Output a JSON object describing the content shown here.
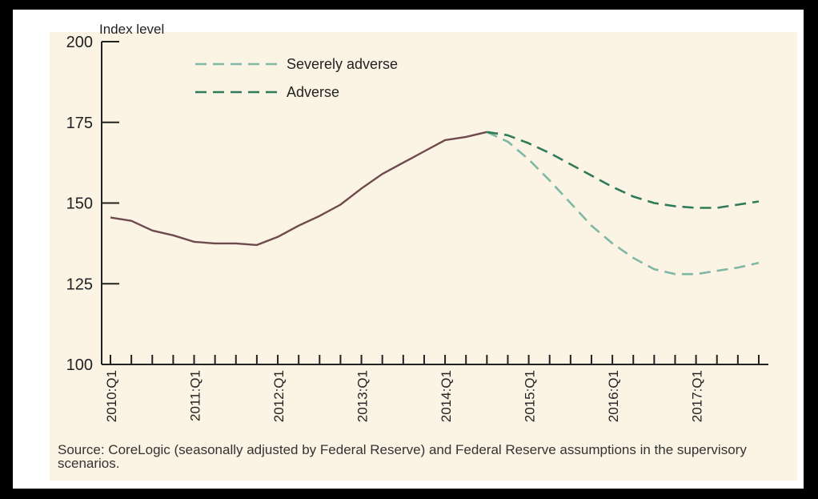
{
  "chart_data": {
    "type": "line",
    "ylabel": "Index level",
    "xlabel": "",
    "ylim": [
      100,
      200
    ],
    "yticks": [
      100,
      125,
      150,
      175,
      200
    ],
    "xrange": [
      2010.0,
      2017.75
    ],
    "xticklabels": [
      {
        "x": 2010.0,
        "label": "2010:Q1"
      },
      {
        "x": 2011.0,
        "label": "2011:Q1"
      },
      {
        "x": 2012.0,
        "label": "2012:Q1"
      },
      {
        "x": 2013.0,
        "label": "2013:Q1"
      },
      {
        "x": 2014.0,
        "label": "2014:Q1"
      },
      {
        "x": 2015.0,
        "label": "2015:Q1"
      },
      {
        "x": 2016.0,
        "label": "2016:Q1"
      },
      {
        "x": 2017.0,
        "label": "2017:Q1"
      }
    ],
    "legend_position": "top-left",
    "series": [
      {
        "key": "historical",
        "color": "#6e4a4f",
        "dash": "solid",
        "x": [
          2010.0,
          2010.25,
          2010.5,
          2010.75,
          2011.0,
          2011.25,
          2011.5,
          2011.75,
          2012.0,
          2012.25,
          2012.5,
          2012.75,
          2013.0,
          2013.25,
          2013.5,
          2013.75,
          2014.0,
          2014.25,
          2014.5
        ],
        "y": [
          145.5,
          144.5,
          141.5,
          140.0,
          138.0,
          137.5,
          137.5,
          137.0,
          139.5,
          143.0,
          146.0,
          149.5,
          154.5,
          159.0,
          162.5,
          166.0,
          169.5,
          170.5,
          172.0
        ]
      },
      {
        "name": "Severely adverse",
        "color": "#7fb8a4",
        "dash": "dashed",
        "x": [
          2014.5,
          2014.75,
          2015.0,
          2015.25,
          2015.5,
          2015.75,
          2016.0,
          2016.25,
          2016.5,
          2016.75,
          2017.0,
          2017.25,
          2017.5,
          2017.75
        ],
        "y": [
          172.0,
          169.0,
          163.5,
          157.0,
          150.0,
          143.0,
          137.5,
          133.0,
          129.5,
          128.0,
          128.0,
          129.0,
          130.0,
          131.5
        ]
      },
      {
        "name": "Adverse",
        "color": "#2e7a5a",
        "dash": "dashed",
        "x": [
          2014.5,
          2014.75,
          2015.0,
          2015.25,
          2015.5,
          2015.75,
          2016.0,
          2016.25,
          2016.5,
          2016.75,
          2017.0,
          2017.25,
          2017.5,
          2017.75
        ],
        "y": [
          172.0,
          171.0,
          168.5,
          165.5,
          162.0,
          158.5,
          155.0,
          152.0,
          150.0,
          149.0,
          148.5,
          148.5,
          149.5,
          150.5
        ]
      }
    ]
  },
  "source_text": "Source: CoreLogic (seasonally adjusted by Federal Reserve) and Federal Reserve assumptions in the supervisory scenarios."
}
